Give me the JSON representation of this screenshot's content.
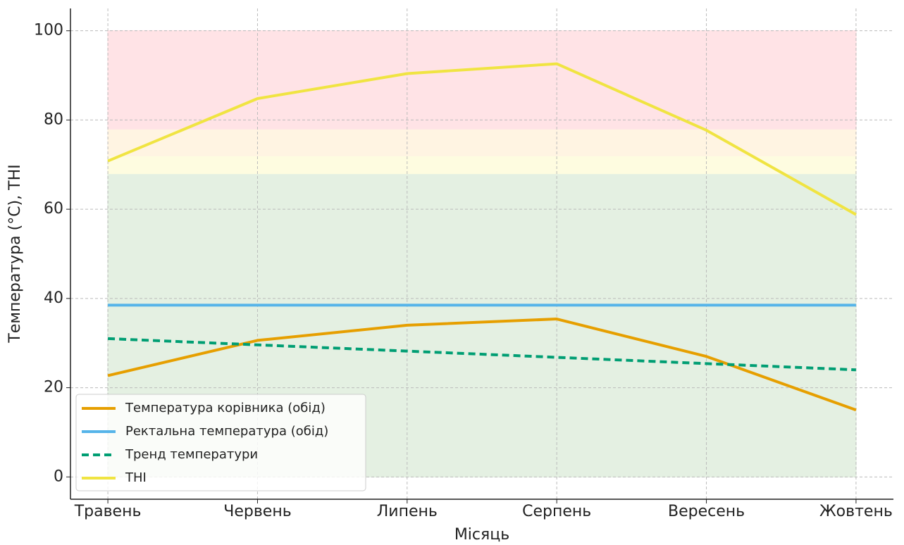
{
  "chart_data": {
    "type": "line",
    "x_label": "Місяць",
    "y_label": "Температура (°C), THI",
    "categories": [
      "Травень",
      "Червень",
      "Липень",
      "Серпень",
      "Вересень",
      "Жовтень"
    ],
    "series": [
      {
        "name": "Температура корівника (обід)",
        "color": "#E69F00",
        "dash": false,
        "values": [
          22.7,
          30.6,
          34.0,
          35.4,
          27.0,
          15.0
        ]
      },
      {
        "name": "Ректальна температура (обід)",
        "color": "#56B4E9",
        "dash": false,
        "values": [
          38.5,
          38.5,
          38.5,
          38.5,
          38.5,
          38.5
        ]
      },
      {
        "name": "Тренд температури",
        "color": "#009E73",
        "dash": true,
        "values": [
          31.0,
          29.6,
          28.2,
          26.8,
          25.4,
          24.0
        ]
      },
      {
        "name": "THI",
        "color": "#F0E442",
        "dash": false,
        "values": [
          70.8,
          84.8,
          90.4,
          92.6,
          77.7,
          58.8
        ]
      }
    ],
    "bands": [
      {
        "from": 0,
        "to": 68,
        "color": "#e4f0e2"
      },
      {
        "from": 68,
        "to": 72,
        "color": "#fefce0"
      },
      {
        "from": 72,
        "to": 78,
        "color": "#fff4e2"
      },
      {
        "from": 78,
        "to": 100,
        "color": "#ffe3e6"
      }
    ],
    "ylim": [
      -5,
      105
    ],
    "yticks": [
      0,
      20,
      40,
      60,
      80,
      100
    ],
    "grid": true,
    "legend": "lower left"
  }
}
